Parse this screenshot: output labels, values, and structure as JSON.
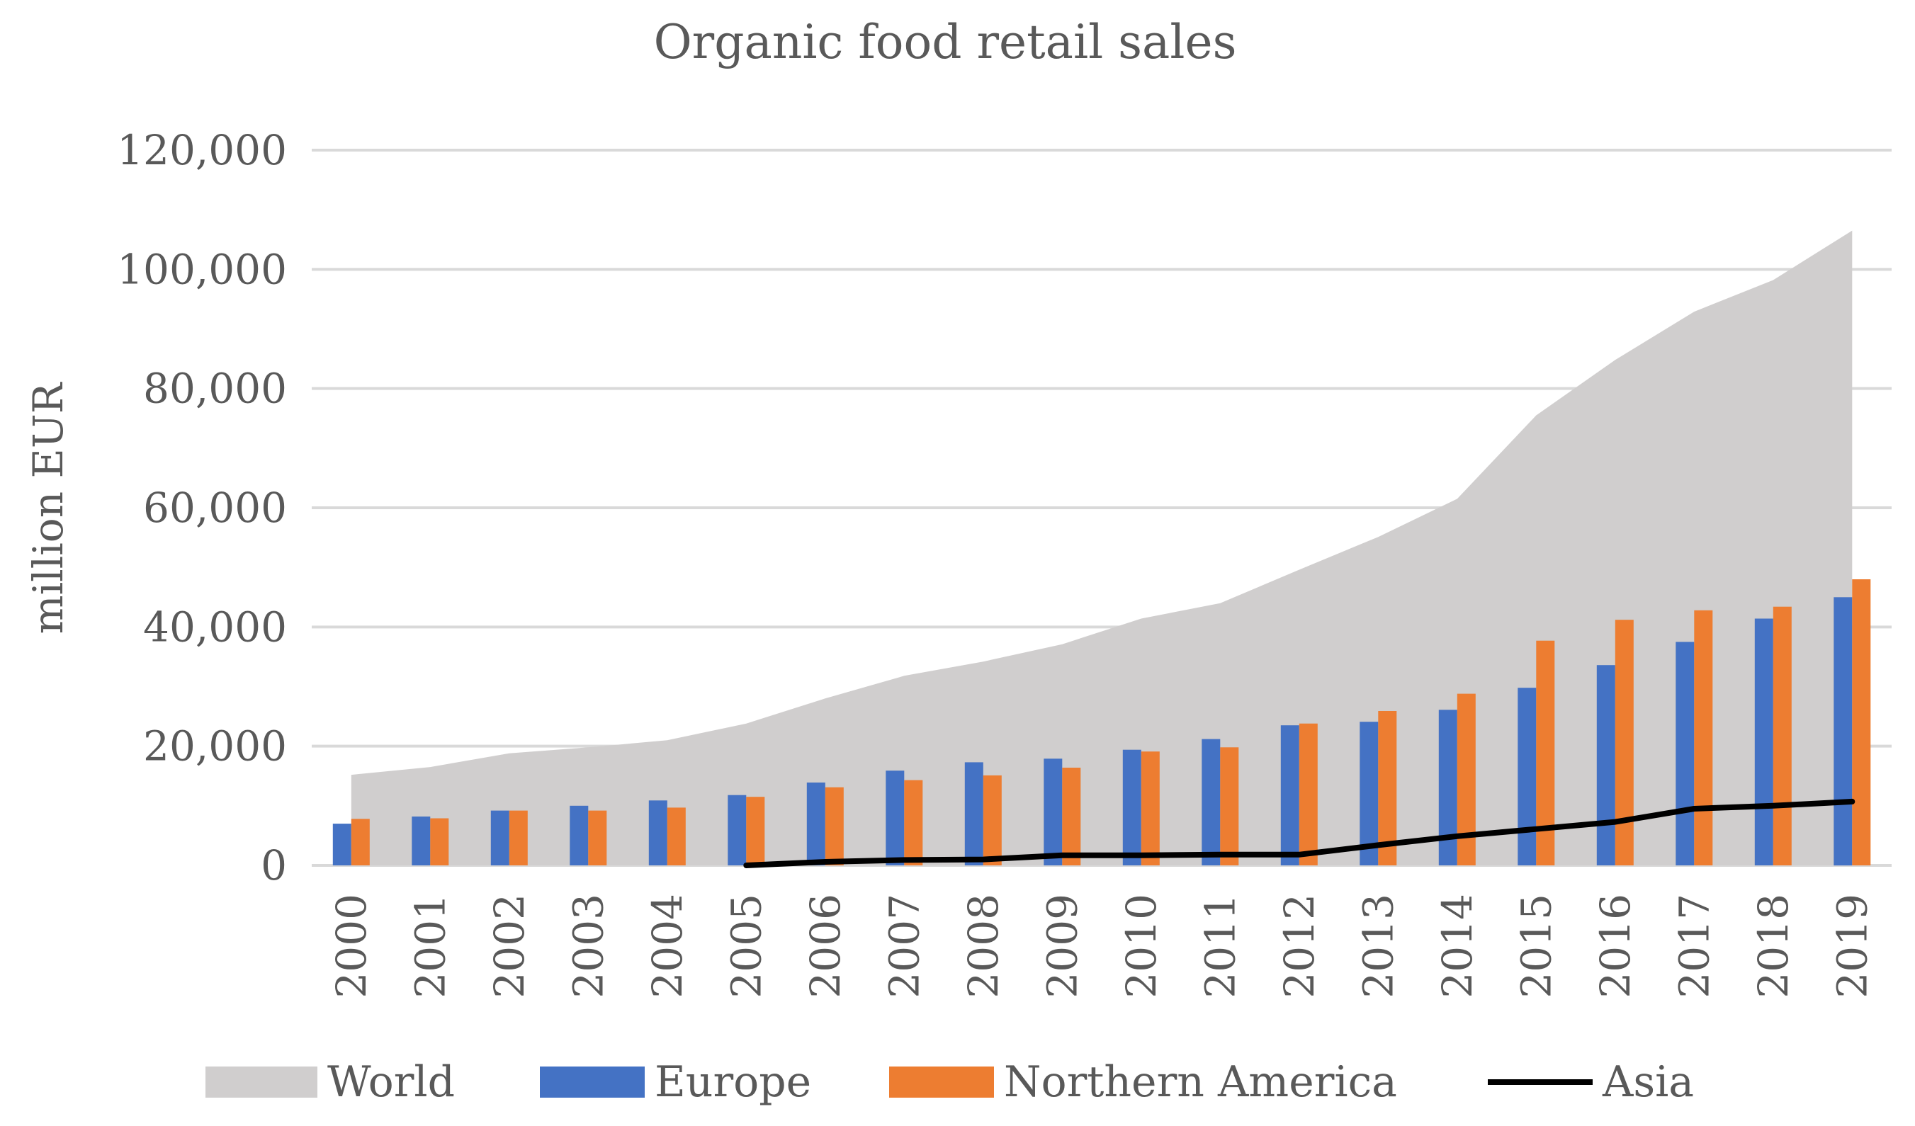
{
  "chart_data": {
    "type": "bar",
    "title": "Organic food retail sales",
    "xlabel": "",
    "ylabel": "million EUR",
    "ylim": [
      0,
      120000
    ],
    "yticks": [
      0,
      20000,
      40000,
      60000,
      80000,
      100000,
      120000
    ],
    "ytick_labels": [
      "0",
      "20,000",
      "40,000",
      "60,000",
      "80,000",
      "100,000",
      "120,000"
    ],
    "grid": true,
    "legend_position": "bottom",
    "categories": [
      "2000",
      "2001",
      "2002",
      "2003",
      "2004",
      "2005",
      "2006",
      "2007",
      "2008",
      "2009",
      "2010",
      "2011",
      "2012",
      "2013",
      "2014",
      "2015",
      "2016",
      "2017",
      "2018",
      "2019"
    ],
    "series": [
      {
        "name": "World",
        "type": "area",
        "color": "#d0cece",
        "values": [
          15200,
          16500,
          18800,
          19800,
          21000,
          23800,
          28000,
          31800,
          34200,
          37100,
          41400,
          44000,
          49600,
          55100,
          61500,
          75500,
          84800,
          92900,
          98200,
          106500
        ]
      },
      {
        "name": "Europe",
        "type": "bar",
        "color": "#4472c4",
        "values": [
          7000,
          8200,
          9200,
          10000,
          10900,
          11800,
          13900,
          15900,
          17300,
          17900,
          19400,
          21200,
          23500,
          24100,
          26100,
          29800,
          33600,
          37500,
          41400,
          45000
        ]
      },
      {
        "name": "Northern America",
        "type": "bar",
        "color": "#ed7d31",
        "values": [
          7800,
          7900,
          9200,
          9200,
          9700,
          11500,
          13100,
          14300,
          15100,
          16400,
          19100,
          19800,
          23800,
          25900,
          28800,
          37700,
          41200,
          42800,
          43400,
          48000
        ]
      },
      {
        "name": "Asia",
        "type": "line",
        "color": "#000000",
        "values": [
          null,
          null,
          null,
          null,
          null,
          0,
          600,
          900,
          1000,
          1700,
          1700,
          1800,
          1800,
          3400,
          4900,
          6100,
          7300,
          9500,
          10000,
          10700
        ]
      }
    ]
  }
}
